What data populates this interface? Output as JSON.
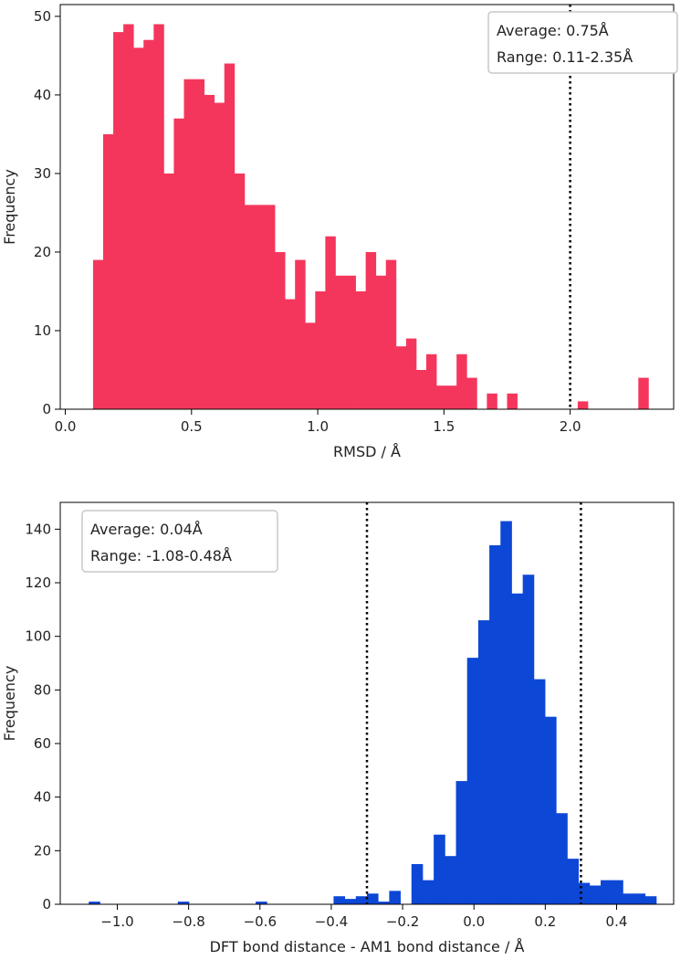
{
  "chart_data": [
    {
      "type": "bar",
      "name": "rmsd-histogram",
      "color": "#F5365C",
      "bin_start": 0.11,
      "bin_width": 0.04,
      "values": [
        19,
        35,
        48,
        49,
        46,
        47,
        49,
        30,
        37,
        42,
        42,
        40,
        39,
        44,
        30,
        26,
        26,
        26,
        20,
        14,
        19,
        11,
        15,
        22,
        17,
        17,
        15,
        20,
        17,
        19,
        8,
        9,
        5,
        7,
        3,
        3,
        7,
        4,
        0,
        2,
        0,
        2,
        0,
        0,
        0,
        0,
        0,
        0,
        1,
        0,
        0,
        0,
        0,
        0,
        4
      ],
      "xlabel": "RMSD / Å",
      "ylabel": "Frequency",
      "xlim": [
        -0.02,
        2.41
      ],
      "ylim": [
        0,
        51.5
      ],
      "xticks": [
        0.0,
        0.5,
        1.0,
        1.5,
        2.0
      ],
      "xtick_labels": [
        "0.0",
        "0.5",
        "1.0",
        "1.5",
        "2.0"
      ],
      "yticks": [
        0,
        10,
        20,
        30,
        40,
        50
      ],
      "ytick_labels": [
        "0",
        "10",
        "20",
        "30",
        "40",
        "50"
      ],
      "vlines": [
        2.0
      ],
      "legend_lines": [
        "Average: 0.75Å",
        "Range: 0.11-2.35Å"
      ],
      "legend_position": "top-right"
    },
    {
      "type": "bar",
      "name": "bond-distance-histogram",
      "color": "#0D47D6",
      "bin_start": -1.08,
      "bin_width": 0.0312,
      "values": [
        1,
        0,
        0,
        0,
        0,
        0,
        0,
        0,
        1,
        0,
        0,
        0,
        0,
        0,
        0,
        1,
        0,
        0,
        0,
        0,
        0,
        0,
        3,
        2,
        3,
        4,
        1,
        5,
        0,
        15,
        9,
        26,
        18,
        46,
        92,
        106,
        134,
        143,
        116,
        123,
        84,
        70,
        34,
        17,
        8,
        7,
        9,
        9,
        4,
        4,
        3
      ],
      "xlabel": "DFT bond distance - AM1 bond distance / Å",
      "ylabel": "Frequency",
      "xlim": [
        -1.16,
        0.56
      ],
      "ylim": [
        0,
        150
      ],
      "xticks": [
        -1.0,
        -0.8,
        -0.6,
        -0.4,
        -0.2,
        0.0,
        0.2,
        0.4
      ],
      "xtick_labels": [
        "−1.0",
        "−0.8",
        "−0.6",
        "−0.4",
        "−0.2",
        "0.0",
        "0.2",
        "0.4"
      ],
      "yticks": [
        0,
        20,
        40,
        60,
        80,
        100,
        120,
        140
      ],
      "ytick_labels": [
        "0",
        "20",
        "40",
        "60",
        "80",
        "100",
        "120",
        "140"
      ],
      "vlines": [
        -0.3,
        0.3
      ],
      "legend_lines": [
        "Average: 0.04Å",
        "Range: -1.08-0.48Å"
      ],
      "legend_position": "top-left"
    }
  ]
}
